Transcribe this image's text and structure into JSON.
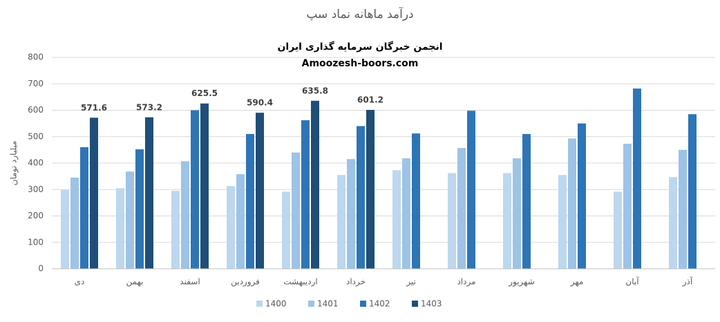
{
  "chart_data": {
    "type": "bar",
    "title": "درآمد ماهانه نماد سپ",
    "subtitle": [
      "انجمن خبرگان سرمایه گذاری ایران",
      "Amoozesh-boors.com"
    ],
    "y_label": "میلیارد تومان",
    "categories": [
      "دی",
      "بهمن",
      "اسفند",
      "فروردین",
      "اردیبهشت",
      "خرداد",
      "تیر",
      "مرداد",
      "شهریور",
      "مهر",
      "آبان",
      "آذر"
    ],
    "series": [
      {
        "name": "1400",
        "color": "#bdd7ee",
        "values": [
          298,
          305,
          295,
          313,
          292,
          355,
          373,
          362,
          362,
          355,
          292,
          347
        ]
      },
      {
        "name": "1401",
        "color": "#9dc3e6",
        "values": [
          345,
          368,
          407,
          358,
          440,
          415,
          418,
          457,
          418,
          493,
          473,
          450
        ]
      },
      {
        "name": "1402",
        "color": "#2e75b6",
        "values": [
          460,
          452,
          600,
          510,
          562,
          540,
          512,
          598,
          510,
          550,
          682,
          585
        ]
      },
      {
        "name": "1403",
        "color": "#1f4e79",
        "values": [
          571.6,
          573.2,
          625.5,
          590.4,
          635.8,
          601.2,
          null,
          null,
          null,
          null,
          null,
          null
        ],
        "show_value_labels": true
      }
    ],
    "ylim": [
      0,
      800
    ],
    "yticks": [
      0,
      100,
      200,
      300,
      400,
      500,
      600,
      700,
      800
    ],
    "grid": true,
    "legend": "bottom"
  }
}
